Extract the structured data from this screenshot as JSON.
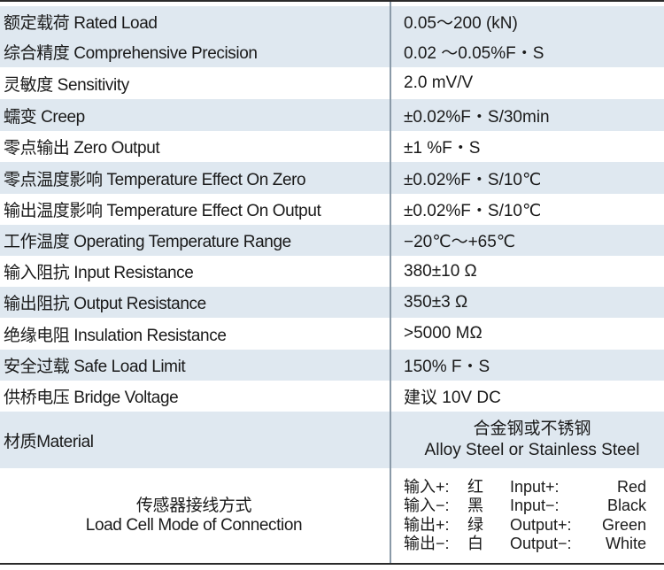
{
  "rows": [
    {
      "label": "额定载荷 Rated Load",
      "value": "0.05～200 (kN)"
    },
    {
      "label": "综合精度 Comprehensive Precision",
      "value": "0.02 ～0.05%F・S"
    },
    {
      "label": "灵敏度 Sensitivity",
      "value": "2.0 mV/V"
    },
    {
      "label": "蠕变 Creep",
      "value": "±0.02%F・S/30min"
    },
    {
      "label": "零点输出 Zero Output",
      "value": "±1 %F・S"
    },
    {
      "label": "零点温度影响 Temperature Effect On Zero",
      "value": "±0.02%F・S/10℃"
    },
    {
      "label": "输出温度影响 Temperature Effect On Output",
      "value": "±0.02%F・S/10℃"
    },
    {
      "label": "工作温度 Operating Temperature Range",
      "value": "−20℃～+65℃"
    },
    {
      "label": "输入阻抗 Input Resistance",
      "value": "380±10 Ω"
    },
    {
      "label": "输出阻抗 Output Resistance",
      "value": "350±3 Ω"
    },
    {
      "label": "绝缘电阻 Insulation Resistance",
      "value": ">5000 MΩ"
    },
    {
      "label": "安全过载 Safe Load Limit",
      "value": "150% F・S"
    },
    {
      "label": "供桥电压 Bridge Voltage",
      "value": "建议 10V DC"
    }
  ],
  "material": {
    "label": "材质Material",
    "value_cn": "合金钢或不锈钢",
    "value_en": "Alloy Steel or Stainless Steel"
  },
  "connection": {
    "label_cn": "传感器接线方式",
    "label_en": "Load Cell Mode of Connection",
    "wires": [
      {
        "cn": "输入+:",
        "cn_color": "红",
        "en": "Input+:",
        "en_color": "Red"
      },
      {
        "cn": "输入−:",
        "cn_color": "黑",
        "en": "Input−:",
        "en_color": "Black"
      },
      {
        "cn": "输出+:",
        "cn_color": "绿",
        "en": "Output+:",
        "en_color": "Green"
      },
      {
        "cn": "输出−:",
        "cn_color": "白",
        "en": "Output−:",
        "en_color": "White"
      }
    ]
  },
  "colors": {
    "shade": "#dfe8f0",
    "divider": "#8a9aa8",
    "text": "#1a1a1a"
  }
}
